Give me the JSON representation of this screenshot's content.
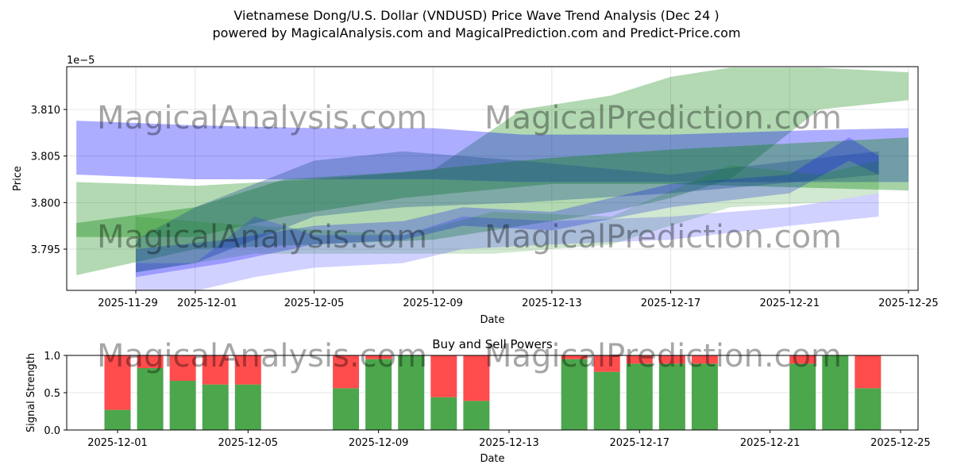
{
  "chart_data": [
    {
      "type": "area",
      "title": "Vietnamese Dong/U.S. Dollar (VNDUSD) Price Wave Trend Analysis (Dec 24 )",
      "subtitle": "powered by MagicalAnalysis.com and MagicalPrediction.com and Predict-Price.com",
      "xlabel": "Date",
      "ylabel": "Price",
      "y_scale_label": "1e−5",
      "ylim": [
        3.7905,
        3.814
      ],
      "xlim": [
        "2025-11-27",
        "2025-12-25"
      ],
      "grid": true,
      "x_ticks": [
        "2025-11-29",
        "2025-12-01",
        "2025-12-05",
        "2025-12-09",
        "2025-12-13",
        "2025-12-17",
        "2025-12-21",
        "2025-12-25"
      ],
      "y_ticks": [
        "3.795",
        "3.800",
        "3.805",
        "3.810"
      ],
      "watermarks": [
        "MagicalAnalysis.com",
        "MagicalPrediction.com"
      ],
      "bands": [
        {
          "name": "green-wide",
          "color": "#008000",
          "opacity": 0.3,
          "points": [
            [
              "2025-11-27",
              3.7922,
              3.8022
            ],
            [
              "2025-12-01",
              3.795,
              3.8018
            ],
            [
              "2025-12-05",
              3.7955,
              3.8025
            ],
            [
              "2025-12-09",
              3.796,
              3.8035
            ],
            [
              "2025-12-12",
              3.7975,
              3.81
            ],
            [
              "2025-12-15",
              3.799,
              3.8115
            ],
            [
              "2025-12-17",
              3.8005,
              3.8135
            ],
            [
              "2025-12-19",
              3.8025,
              3.8145
            ],
            [
              "2025-12-22",
              3.81,
              3.8145
            ],
            [
              "2025-12-25",
              3.811,
              3.814
            ]
          ]
        },
        {
          "name": "blue-wide",
          "color": "#0000ff",
          "opacity": 0.32,
          "points": [
            [
              "2025-11-27",
              3.803,
              3.8088
            ],
            [
              "2025-12-01",
              3.8025,
              3.8083
            ],
            [
              "2025-12-05",
              3.8025,
              3.808
            ],
            [
              "2025-12-09",
              3.8025,
              3.808
            ],
            [
              "2025-12-12",
              3.8022,
              3.8073
            ],
            [
              "2025-12-17",
              3.8022,
              3.8073
            ],
            [
              "2025-12-22",
              3.8022,
              3.8078
            ],
            [
              "2025-12-25",
              3.8022,
              3.808
            ]
          ]
        },
        {
          "name": "green-mid",
          "color": "#008000",
          "opacity": 0.35,
          "points": [
            [
              "2025-11-27",
              3.7963,
              3.7978
            ],
            [
              "2025-12-01",
              3.7963,
              3.7995
            ],
            [
              "2025-12-04",
              3.7985,
              3.8025
            ],
            [
              "2025-12-08",
              3.8005,
              3.8033
            ],
            [
              "2025-12-13",
              3.802,
              3.8048
            ],
            [
              "2025-12-17",
              3.802,
              3.8057
            ],
            [
              "2025-12-25",
              3.8013,
              3.807
            ]
          ]
        },
        {
          "name": "blue-rising",
          "color": "#1f4f8f",
          "opacity": 0.35,
          "points": [
            [
              "2025-11-29",
              3.7925,
              3.796
            ],
            [
              "2025-12-01",
              3.7935,
              3.7995
            ],
            [
              "2025-12-05",
              3.7985,
              3.8045
            ],
            [
              "2025-12-08",
              3.7995,
              3.8055
            ],
            [
              "2025-12-12",
              3.8,
              3.8045
            ],
            [
              "2025-12-17",
              3.801,
              3.803
            ],
            [
              "2025-12-24",
              3.803,
              3.8055
            ]
          ]
        },
        {
          "name": "blue-mid",
          "color": "#0000ff",
          "opacity": 0.25,
          "points": [
            [
              "2025-11-29",
              3.792,
              3.795
            ],
            [
              "2025-12-02",
              3.7935,
              3.796
            ],
            [
              "2025-12-05",
              3.7955,
              3.7975
            ],
            [
              "2025-12-08",
              3.796,
              3.798
            ],
            [
              "2025-12-10",
              3.7975,
              3.7995
            ],
            [
              "2025-12-13",
              3.797,
              3.799
            ],
            [
              "2025-12-17",
              3.7995,
              3.802
            ],
            [
              "2025-12-21",
              3.801,
              3.803
            ],
            [
              "2025-12-23",
              3.8045,
              3.807
            ],
            [
              "2025-12-24",
              3.803,
              3.805
            ]
          ]
        },
        {
          "name": "green-low",
          "color": "#008000",
          "opacity": 0.18,
          "points": [
            [
              "2025-11-29",
              3.7925,
              3.7985
            ],
            [
              "2025-12-03",
              3.7945,
              3.7975
            ],
            [
              "2025-12-08",
              3.7945,
              3.7965
            ],
            [
              "2025-12-11",
              3.7945,
              3.799
            ],
            [
              "2025-12-15",
              3.7955,
              3.7985
            ],
            [
              "2025-12-19",
              3.7995,
              3.804
            ],
            [
              "2025-12-22",
              3.8,
              3.803
            ],
            [
              "2025-12-24",
              3.801,
              3.8045
            ]
          ]
        },
        {
          "name": "blue-light-low",
          "color": "#0000ff",
          "opacity": 0.18,
          "points": [
            [
              "2025-11-29",
              3.79,
              3.7935
            ],
            [
              "2025-12-01",
              3.7905,
              3.7935
            ],
            [
              "2025-12-03",
              3.792,
              3.7985
            ],
            [
              "2025-12-05",
              3.793,
              3.7965
            ],
            [
              "2025-12-08",
              3.7935,
              3.7965
            ],
            [
              "2025-12-10",
              3.795,
              3.7985
            ],
            [
              "2025-12-13",
              3.7955,
              3.798
            ],
            [
              "2025-12-17",
              3.796,
              3.7985
            ],
            [
              "2025-12-21",
              3.7975,
              3.7995
            ],
            [
              "2025-12-24",
              3.7985,
              3.801
            ]
          ]
        }
      ]
    },
    {
      "type": "bar",
      "title": "Buy and Sell Powers",
      "xlabel": "Date",
      "ylabel": "Signal Strength",
      "ylim": [
        0,
        1
      ],
      "y_ticks": [
        "0.0",
        "0.5",
        "1.0"
      ],
      "x_ticks": [
        "2025-12-01",
        "2025-12-05",
        "2025-12-09",
        "2025-12-13",
        "2025-12-17",
        "2025-12-21",
        "2025-12-25"
      ],
      "xlim": [
        "2025-11-29",
        "2025-12-25.5"
      ],
      "buy_color": "#4ca64c",
      "sell_color": "#ff4c4c",
      "categories": [
        "2025-12-01",
        "2025-12-02",
        "2025-12-03",
        "2025-12-04",
        "2025-12-05",
        "2025-12-08",
        "2025-12-09",
        "2025-12-10",
        "2025-12-11",
        "2025-12-12",
        "2025-12-15",
        "2025-12-16",
        "2025-12-17",
        "2025-12-18",
        "2025-12-19",
        "2025-12-22",
        "2025-12-23",
        "2025-12-24"
      ],
      "series": [
        {
          "name": "Buy",
          "values": [
            0.27,
            0.83,
            0.66,
            0.61,
            0.61,
            0.56,
            0.95,
            1.0,
            0.44,
            0.39,
            0.95,
            0.78,
            0.89,
            0.89,
            0.89,
            0.89,
            1.0,
            0.56
          ]
        },
        {
          "name": "Sell",
          "values": [
            0.73,
            0.17,
            0.34,
            0.39,
            0.39,
            0.44,
            0.05,
            0.0,
            0.56,
            0.61,
            0.05,
            0.22,
            0.11,
            0.11,
            0.11,
            0.11,
            0.0,
            0.44
          ]
        }
      ]
    }
  ]
}
